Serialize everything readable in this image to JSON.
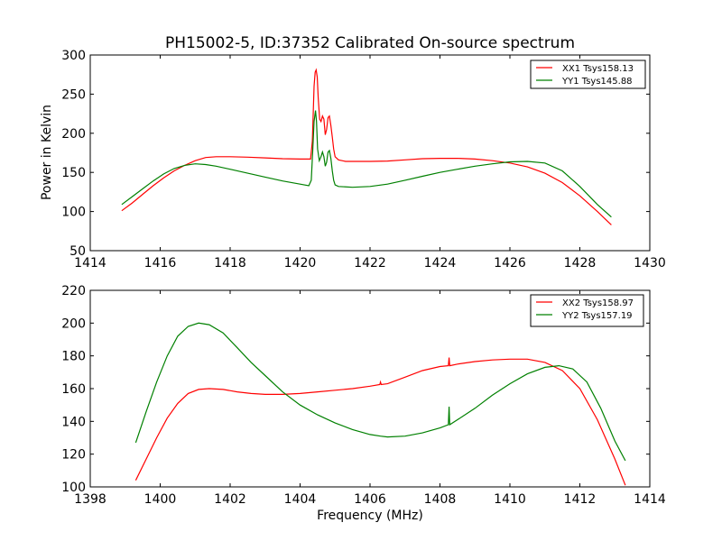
{
  "chart_data": [
    {
      "type": "line",
      "title": "PH15002-5, ID:37352 Calibrated On-source spectrum",
      "xlabel": "",
      "ylabel": "Power in Kelvin",
      "xlim": [
        1414,
        1430
      ],
      "ylim": [
        50,
        300
      ],
      "xticks": [
        "1414",
        "1416",
        "1418",
        "1420",
        "1422",
        "1424",
        "1426",
        "1428",
        "1430"
      ],
      "yticks": [
        "50",
        "100",
        "150",
        "200",
        "250",
        "300"
      ],
      "legend_position": "top-right",
      "series": [
        {
          "name": "XX1 Tsys158.13",
          "color": "#ff0000",
          "points": [
            [
              1414.9,
              101
            ],
            [
              1415.2,
              111
            ],
            [
              1415.5,
              122
            ],
            [
              1415.8,
              133
            ],
            [
              1416.1,
              143
            ],
            [
              1416.4,
              152
            ],
            [
              1416.7,
              159
            ],
            [
              1417.0,
              165
            ],
            [
              1417.3,
              169
            ],
            [
              1417.6,
              170
            ],
            [
              1418.0,
              170
            ],
            [
              1418.5,
              169.5
            ],
            [
              1419.0,
              168.5
            ],
            [
              1419.5,
              167.5
            ],
            [
              1420.0,
              167
            ],
            [
              1420.3,
              167
            ],
            [
              1420.35,
              190
            ],
            [
              1420.4,
              260
            ],
            [
              1420.43,
              278
            ],
            [
              1420.46,
              281
            ],
            [
              1420.49,
              272
            ],
            [
              1420.52,
              245
            ],
            [
              1420.56,
              218
            ],
            [
              1420.6,
              215
            ],
            [
              1420.64,
              222
            ],
            [
              1420.68,
              218
            ],
            [
              1420.72,
              198
            ],
            [
              1420.76,
              205
            ],
            [
              1420.8,
              220
            ],
            [
              1420.84,
              222
            ],
            [
              1420.88,
              210
            ],
            [
              1420.92,
              195
            ],
            [
              1420.96,
              180
            ],
            [
              1421.0,
              170
            ],
            [
              1421.1,
              166
            ],
            [
              1421.3,
              164
            ],
            [
              1422.0,
              164
            ],
            [
              1422.5,
              164.5
            ],
            [
              1423.0,
              166
            ],
            [
              1423.5,
              167.5
            ],
            [
              1424.0,
              168
            ],
            [
              1424.5,
              168
            ],
            [
              1425.0,
              167
            ],
            [
              1425.5,
              165
            ],
            [
              1426.0,
              162
            ],
            [
              1426.5,
              157
            ],
            [
              1427.0,
              149
            ],
            [
              1427.5,
              137
            ],
            [
              1428.0,
              120
            ],
            [
              1428.5,
              100
            ],
            [
              1428.9,
              83
            ]
          ]
        },
        {
          "name": "YY1 Tsys145.88",
          "color": "#008000",
          "points": [
            [
              1414.9,
              109
            ],
            [
              1415.2,
              119
            ],
            [
              1415.5,
              129
            ],
            [
              1415.8,
              139
            ],
            [
              1416.1,
              148
            ],
            [
              1416.4,
              155
            ],
            [
              1416.7,
              159
            ],
            [
              1417.0,
              161
            ],
            [
              1417.3,
              160
            ],
            [
              1417.6,
              158
            ],
            [
              1418.0,
              154
            ],
            [
              1418.5,
              149
            ],
            [
              1419.0,
              144
            ],
            [
              1419.5,
              139
            ],
            [
              1420.0,
              135
            ],
            [
              1420.25,
              133
            ],
            [
              1420.32,
              140
            ],
            [
              1420.36,
              175
            ],
            [
              1420.4,
              215
            ],
            [
              1420.44,
              229
            ],
            [
              1420.47,
              215
            ],
            [
              1420.5,
              180
            ],
            [
              1420.55,
              165
            ],
            [
              1420.6,
              170
            ],
            [
              1420.64,
              176
            ],
            [
              1420.68,
              170
            ],
            [
              1420.72,
              158
            ],
            [
              1420.76,
              163
            ],
            [
              1420.8,
              176
            ],
            [
              1420.84,
              178
            ],
            [
              1420.88,
              168
            ],
            [
              1420.92,
              152
            ],
            [
              1420.96,
              140
            ],
            [
              1421.0,
              134
            ],
            [
              1421.1,
              132
            ],
            [
              1421.5,
              131
            ],
            [
              1422.0,
              132
            ],
            [
              1422.5,
              135
            ],
            [
              1423.0,
              140
            ],
            [
              1423.5,
              145
            ],
            [
              1424.0,
              150
            ],
            [
              1424.5,
              154
            ],
            [
              1425.0,
              158
            ],
            [
              1425.5,
              161
            ],
            [
              1426.0,
              163.5
            ],
            [
              1426.5,
              164
            ],
            [
              1427.0,
              162
            ],
            [
              1427.5,
              152
            ],
            [
              1428.0,
              132
            ],
            [
              1428.5,
              109
            ],
            [
              1428.9,
              93
            ]
          ]
        }
      ]
    },
    {
      "type": "line",
      "title": "",
      "xlabel": "Frequency (MHz)",
      "ylabel": "",
      "xlim": [
        1398,
        1414
      ],
      "ylim": [
        100,
        220
      ],
      "xticks": [
        "1398",
        "1400",
        "1402",
        "1404",
        "1406",
        "1408",
        "1410",
        "1412",
        "1414"
      ],
      "yticks": [
        "100",
        "120",
        "140",
        "160",
        "180",
        "200",
        "220"
      ],
      "legend_position": "top-right",
      "series": [
        {
          "name": "XX2 Tsys158.97",
          "color": "#ff0000",
          "points": [
            [
              1399.3,
              104
            ],
            [
              1399.6,
              117
            ],
            [
              1399.9,
              130
            ],
            [
              1400.2,
              142
            ],
            [
              1400.5,
              151
            ],
            [
              1400.8,
              157
            ],
            [
              1401.1,
              159.5
            ],
            [
              1401.4,
              160
            ],
            [
              1401.8,
              159.5
            ],
            [
              1402.2,
              158
            ],
            [
              1402.6,
              157
            ],
            [
              1403.0,
              156.5
            ],
            [
              1403.5,
              156.5
            ],
            [
              1404.0,
              157
            ],
            [
              1404.5,
              158
            ],
            [
              1405.0,
              159
            ],
            [
              1405.5,
              160
            ],
            [
              1406.0,
              161.5
            ],
            [
              1406.28,
              162.5
            ],
            [
              1406.3,
              164
            ],
            [
              1406.32,
              162.5
            ],
            [
              1406.5,
              163
            ],
            [
              1407.0,
              167
            ],
            [
              1407.5,
              171
            ],
            [
              1408.0,
              173.5
            ],
            [
              1408.24,
              174
            ],
            [
              1408.26,
              179
            ],
            [
              1408.28,
              174
            ],
            [
              1408.5,
              175
            ],
            [
              1409.0,
              176.5
            ],
            [
              1409.5,
              177.5
            ],
            [
              1410.0,
              178
            ],
            [
              1410.5,
              178
            ],
            [
              1411.0,
              176
            ],
            [
              1411.5,
              171
            ],
            [
              1412.0,
              160
            ],
            [
              1412.5,
              141
            ],
            [
              1413.0,
              117
            ],
            [
              1413.3,
              101
            ]
          ]
        },
        {
          "name": "YY2 Tsys157.19",
          "color": "#008000",
          "points": [
            [
              1399.3,
              127
            ],
            [
              1399.6,
              146
            ],
            [
              1399.9,
              164
            ],
            [
              1400.2,
              180
            ],
            [
              1400.5,
              192
            ],
            [
              1400.8,
              198
            ],
            [
              1401.1,
              200
            ],
            [
              1401.4,
              199
            ],
            [
              1401.8,
              194
            ],
            [
              1402.2,
              185
            ],
            [
              1402.6,
              176
            ],
            [
              1403.0,
              168
            ],
            [
              1403.5,
              158
            ],
            [
              1404.0,
              150
            ],
            [
              1404.5,
              144
            ],
            [
              1405.0,
              139
            ],
            [
              1405.5,
              135
            ],
            [
              1406.0,
              132
            ],
            [
              1406.3,
              131
            ],
            [
              1406.5,
              130.5
            ],
            [
              1407.0,
              131
            ],
            [
              1407.5,
              133
            ],
            [
              1408.0,
              136
            ],
            [
              1408.24,
              138
            ],
            [
              1408.26,
              149
            ],
            [
              1408.28,
              138
            ],
            [
              1408.5,
              141
            ],
            [
              1409.0,
              148
            ],
            [
              1409.5,
              156
            ],
            [
              1410.0,
              163
            ],
            [
              1410.5,
              169
            ],
            [
              1411.0,
              173
            ],
            [
              1411.4,
              174
            ],
            [
              1411.8,
              172
            ],
            [
              1412.2,
              164
            ],
            [
              1412.6,
              148
            ],
            [
              1413.0,
              128
            ],
            [
              1413.3,
              116
            ]
          ]
        }
      ]
    }
  ]
}
